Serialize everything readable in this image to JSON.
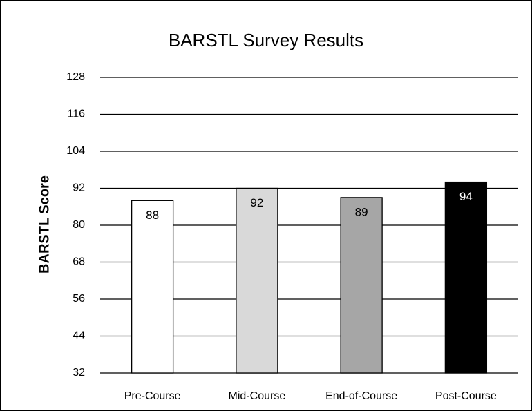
{
  "chart_data": {
    "type": "bar",
    "title": "BARSTL Survey Results",
    "y_label": "BARSTL Score",
    "categories": [
      "Pre-Course",
      "Mid-Course",
      "End-of-Course",
      "Post-Course"
    ],
    "values": [
      88,
      92,
      89,
      94
    ],
    "colors": [
      "#ffffff",
      "#d9d9d9",
      "#a6a6a6",
      "#000000"
    ],
    "ylim": [
      32,
      128
    ],
    "yticks": [
      32,
      44,
      56,
      68,
      80,
      92,
      104,
      116,
      128
    ],
    "grid": true
  }
}
